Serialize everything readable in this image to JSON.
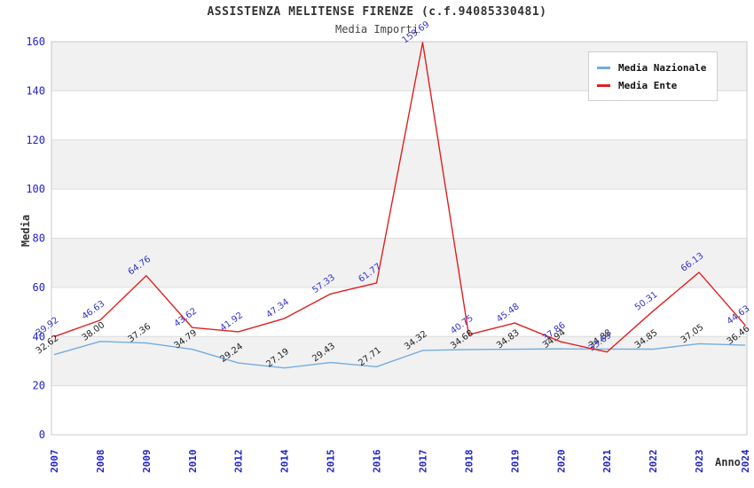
{
  "chart_data": {
    "type": "line",
    "title": "ASSISTENZA MELITENSE FIRENZE (c.f.94085330481)",
    "subtitle": "Media Importi",
    "xlabel": "Anno",
    "ylabel": "Media",
    "ylim": [
      0,
      160
    ],
    "ytick_step": 20,
    "yticks": [
      0,
      20,
      40,
      60,
      80,
      100,
      120,
      140,
      160
    ],
    "grid": "horizontal-bands-alternating",
    "legend_position": "top-right",
    "categories": [
      "2007",
      "2008",
      "2009",
      "2010",
      "2012",
      "2014",
      "2015",
      "2016",
      "2017",
      "2018",
      "2019",
      "2020",
      "2021",
      "2022",
      "2023",
      "2024"
    ],
    "series": [
      {
        "name": "Media Nazionale",
        "color": "#74ACDF",
        "label_color": "#222222",
        "values": [
          32.62,
          38.0,
          37.36,
          34.79,
          29.24,
          27.19,
          29.43,
          27.71,
          34.32,
          34.68,
          34.83,
          34.94,
          34.88,
          34.85,
          37.05,
          36.46
        ],
        "labels": [
          "32.62",
          "38.00",
          "37.36",
          "34.79",
          "29.24",
          "27.19",
          "29.43",
          "27.71",
          "34.32",
          "34.68",
          "34.83",
          "34.94",
          "34.88",
          "34.85",
          "37.05",
          "36.46"
        ]
      },
      {
        "name": "Media Ente",
        "color": "#E02020",
        "label_color": "#3333CC",
        "values": [
          39.92,
          46.63,
          64.76,
          43.62,
          41.92,
          47.34,
          57.33,
          61.77,
          159.69,
          40.75,
          45.48,
          37.86,
          33.69,
          50.31,
          66.13,
          44.63
        ],
        "labels": [
          "39.92",
          "46.63",
          "64.76",
          "43.62",
          "41.92",
          "47.34",
          "57.33",
          "61.77",
          "159.69",
          "40.75",
          "45.48",
          "37.86",
          "33.69",
          "50.31",
          "66.13",
          "44.63"
        ]
      }
    ],
    "colors": {
      "tick_label": "#2222CC",
      "band": "#F1F1F1",
      "gridline": "#DCDCDC",
      "border": "#C8C8C8",
      "title_text": "#333333"
    }
  }
}
